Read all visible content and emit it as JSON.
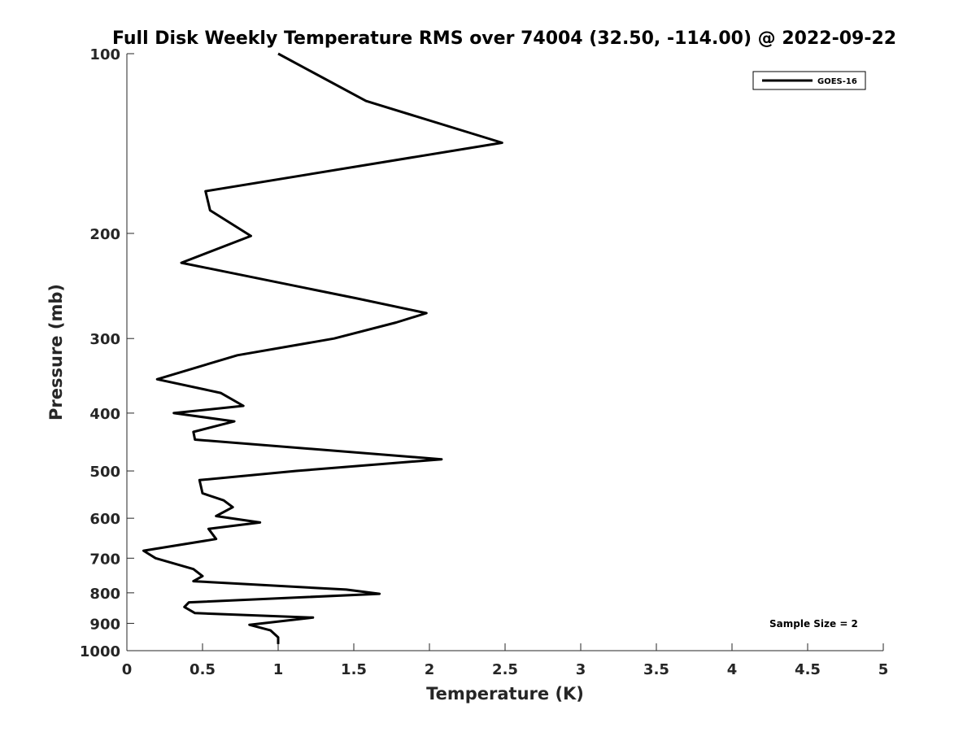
{
  "chart_data": {
    "type": "line",
    "title": "Full Disk Weekly Temperature RMS over 74004 (32.50, -114.00) @ 2022-09-22",
    "xlabel": "Temperature (K)",
    "ylabel": "Pressure (mb)",
    "xlim": [
      0,
      5
    ],
    "ylim": [
      100,
      1000
    ],
    "yscale": "log",
    "y_reversed": true,
    "xticks": [
      "0",
      "0.5",
      "1",
      "1.5",
      "2",
      "2.5",
      "3",
      "3.5",
      "4",
      "4.5",
      "5"
    ],
    "yticks": [
      "100",
      "200",
      "300",
      "400",
      "500",
      "600",
      "700",
      "800",
      "900",
      "1000"
    ],
    "legend_position": "top-right",
    "grid": false,
    "annotation": "Sample Size = 2",
    "series": [
      {
        "name": "GOES-16",
        "color": "#000000",
        "points": [
          [
            1.0,
            100
          ],
          [
            1.58,
            120
          ],
          [
            2.48,
            141
          ],
          [
            0.52,
            170
          ],
          [
            0.55,
            183
          ],
          [
            0.82,
            202
          ],
          [
            0.36,
            224
          ],
          [
            1.52,
            257
          ],
          [
            1.98,
            272
          ],
          [
            1.78,
            282
          ],
          [
            1.37,
            300
          ],
          [
            0.73,
            320
          ],
          [
            0.2,
            351
          ],
          [
            0.62,
            370
          ],
          [
            0.77,
            389
          ],
          [
            0.31,
            400
          ],
          [
            0.71,
            413
          ],
          [
            0.44,
            430
          ],
          [
            0.45,
            443
          ],
          [
            2.08,
            478
          ],
          [
            1.12,
            500
          ],
          [
            0.48,
            518
          ],
          [
            0.5,
            545
          ],
          [
            0.64,
            560
          ],
          [
            0.7,
            575
          ],
          [
            0.59,
            595
          ],
          [
            0.88,
            610
          ],
          [
            0.54,
            625
          ],
          [
            0.59,
            650
          ],
          [
            0.11,
            680
          ],
          [
            0.19,
            700
          ],
          [
            0.44,
            730
          ],
          [
            0.5,
            750
          ],
          [
            0.44,
            765
          ],
          [
            1.45,
            790
          ],
          [
            1.67,
            803
          ],
          [
            0.41,
            830
          ],
          [
            0.38,
            845
          ],
          [
            0.45,
            865
          ],
          [
            1.23,
            880
          ],
          [
            0.81,
            905
          ],
          [
            0.95,
            925
          ],
          [
            1.0,
            950
          ],
          [
            1.0,
            975
          ]
        ]
      }
    ]
  }
}
